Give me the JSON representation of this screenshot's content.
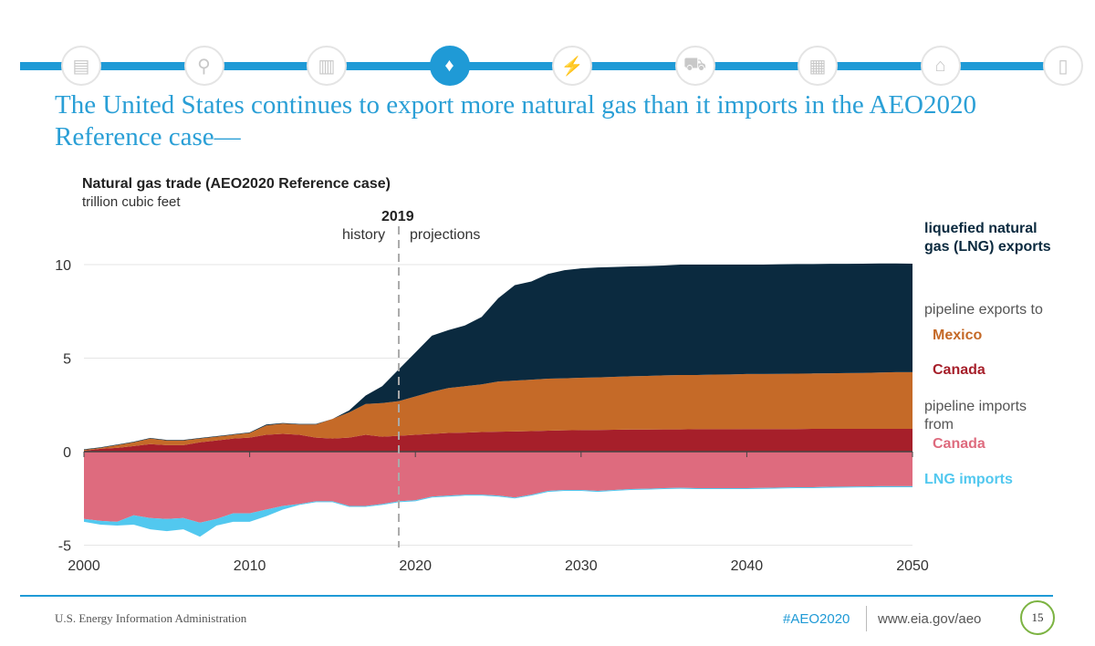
{
  "nav": {
    "icons": [
      "overview-icon",
      "analysis-icon",
      "oil-barrel-icon",
      "natural-gas-flame-icon",
      "electricity-icon",
      "transportation-car-icon",
      "buildings-icon",
      "industrial-icon",
      "documents-icon"
    ],
    "active_index": 3,
    "accent": "#1f9ad6"
  },
  "slide": {
    "title": "The United States continues to export more natural gas than it imports in the AEO2020 Reference case—"
  },
  "footer": {
    "org": "U.S. Energy Information Administration",
    "hashtag": "#AEO2020",
    "url": "www.eia.gov/aeo",
    "page": "15"
  },
  "chart_data": {
    "type": "area",
    "title": "Natural gas trade (AEO2020 Reference case)",
    "ylabel": "trillion cubic feet",
    "xlim": [
      2000,
      2050
    ],
    "ylim": [
      -5,
      10
    ],
    "xticks": [
      "2000",
      "2010",
      "2020",
      "2030",
      "2040",
      "2050"
    ],
    "yticks": [
      "-5",
      "0",
      "5",
      "10"
    ],
    "grid": true,
    "divider": {
      "year": "2019",
      "left": "history",
      "right": "projections"
    },
    "x_start": 2000,
    "series": [
      {
        "name": "Canada",
        "group": "pipeline exports to",
        "color": "#a61f2a",
        "label_color": "#a61f2a",
        "values": [
          0.05,
          0.15,
          0.2,
          0.3,
          0.4,
          0.35,
          0.35,
          0.5,
          0.6,
          0.7,
          0.75,
          0.9,
          0.95,
          0.9,
          0.75,
          0.7,
          0.75,
          0.9,
          0.8,
          0.85,
          0.9,
          0.95,
          1.0,
          1.02,
          1.05,
          1.07,
          1.08,
          1.1,
          1.12,
          1.14,
          1.15,
          1.16,
          1.17,
          1.18,
          1.18,
          1.19,
          1.19,
          1.2,
          1.2,
          1.2,
          1.21,
          1.21,
          1.21,
          1.21,
          1.22,
          1.22,
          1.22,
          1.22,
          1.22,
          1.22,
          1.22
        ]
      },
      {
        "name": "Mexico",
        "group": "pipeline exports to",
        "color": "#c56a28",
        "label_color": "#c56a28",
        "values": [
          0.05,
          0.05,
          0.15,
          0.2,
          0.3,
          0.25,
          0.25,
          0.2,
          0.2,
          0.2,
          0.25,
          0.5,
          0.55,
          0.55,
          0.7,
          1.05,
          1.35,
          1.65,
          1.8,
          1.85,
          2.05,
          2.25,
          2.4,
          2.48,
          2.55,
          2.68,
          2.72,
          2.75,
          2.78,
          2.78,
          2.8,
          2.81,
          2.83,
          2.85,
          2.87,
          2.89,
          2.91,
          2.9,
          2.92,
          2.93,
          2.94,
          2.94,
          2.95,
          2.96,
          2.96,
          2.97,
          2.98,
          2.99,
          3.01,
          3.03,
          3.03
        ]
      },
      {
        "name": "liquefied natural gas (LNG) exports",
        "color": "#0b2a3f",
        "label_color": "#0b2a3f",
        "values": [
          0.03,
          0.03,
          0.03,
          0.03,
          0.03,
          0.03,
          0.03,
          0.03,
          0.03,
          0.03,
          0.03,
          0.05,
          0.03,
          0.03,
          0.03,
          0.0,
          0.1,
          0.45,
          0.9,
          1.7,
          2.35,
          3.0,
          3.1,
          3.25,
          3.6,
          4.45,
          5.1,
          5.25,
          5.6,
          5.78,
          5.85,
          5.88,
          5.87,
          5.87,
          5.87,
          5.87,
          5.9,
          5.9,
          5.88,
          5.87,
          5.85,
          5.85,
          5.86,
          5.86,
          5.85,
          5.85,
          5.84,
          5.84,
          5.83,
          5.81,
          5.8
        ]
      },
      {
        "name": "Canada",
        "group": "pipeline imports from",
        "color": "#de6b7e",
        "label_color": "#de6b7e",
        "values": [
          -3.6,
          -3.7,
          -3.75,
          -3.4,
          -3.55,
          -3.6,
          -3.55,
          -3.8,
          -3.6,
          -3.3,
          -3.3,
          -3.1,
          -2.9,
          -2.8,
          -2.65,
          -2.65,
          -2.9,
          -2.9,
          -2.8,
          -2.65,
          -2.6,
          -2.4,
          -2.35,
          -2.3,
          -2.3,
          -2.35,
          -2.45,
          -2.3,
          -2.1,
          -2.05,
          -2.05,
          -2.1,
          -2.05,
          -2.0,
          -1.98,
          -1.95,
          -1.93,
          -1.95,
          -1.95,
          -1.95,
          -1.95,
          -1.94,
          -1.92,
          -1.9,
          -1.9,
          -1.88,
          -1.87,
          -1.86,
          -1.85,
          -1.85,
          -1.85
        ]
      },
      {
        "name": "LNG imports",
        "color": "#52c8ef",
        "label_color": "#52c8ef",
        "values": [
          -0.15,
          -0.2,
          -0.2,
          -0.5,
          -0.6,
          -0.65,
          -0.6,
          -0.75,
          -0.35,
          -0.45,
          -0.45,
          -0.35,
          -0.2,
          -0.05,
          -0.05,
          -0.05,
          -0.05,
          -0.05,
          -0.05,
          -0.05,
          -0.05,
          -0.05,
          -0.05,
          -0.05,
          -0.05,
          -0.05,
          -0.05,
          -0.05,
          -0.05,
          -0.05,
          -0.05,
          -0.05,
          -0.05,
          -0.05,
          -0.05,
          -0.05,
          -0.05,
          -0.05,
          -0.05,
          -0.05,
          -0.05,
          -0.05,
          -0.05,
          -0.05,
          -0.05,
          -0.05,
          -0.05,
          -0.05,
          -0.05,
          -0.05,
          -0.05
        ]
      }
    ],
    "legend": {
      "lng_exports": "liquefied natural gas (LNG) exports",
      "exports_group": "pipeline exports to",
      "mexico": "Mexico",
      "canada_exports": "Canada",
      "imports_group": "pipeline imports from",
      "canada_imports": "Canada",
      "lng_imports": "LNG imports"
    },
    "legend_placement": "right"
  }
}
